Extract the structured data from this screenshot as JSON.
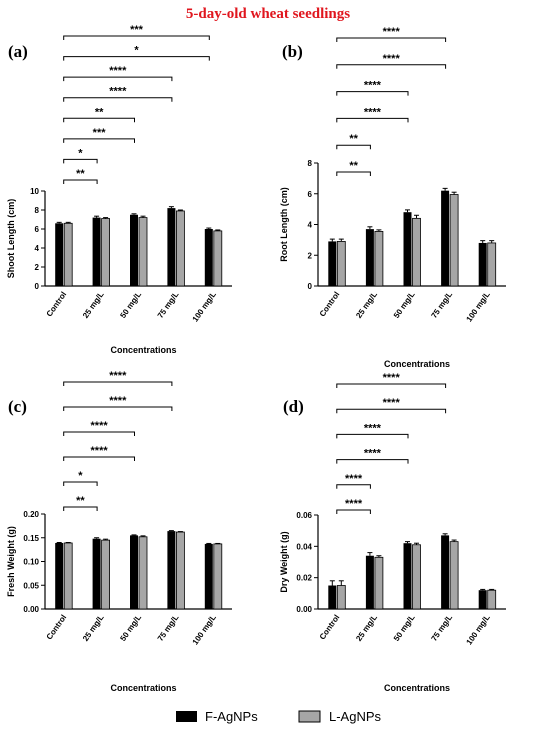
{
  "figure": {
    "title": "5-day-old wheat seedlings",
    "legend": [
      {
        "name": "F-AgNPs",
        "color": "#000000"
      },
      {
        "name": "L-AgNPs",
        "color": "#a6a6a6"
      }
    ]
  },
  "chart_data": [
    {
      "type": "bar",
      "panel_label": "(a)",
      "categories": [
        "Control",
        "25 mg/L",
        "50 mg/L",
        "75 mg/L",
        "100 mg/L"
      ],
      "series": [
        {
          "name": "F-AgNPs",
          "values": [
            6.6,
            7.2,
            7.5,
            8.2,
            6.0
          ],
          "errors": [
            0.1,
            0.15,
            0.1,
            0.15,
            0.1
          ]
        },
        {
          "name": "L-AgNPs",
          "values": [
            6.6,
            7.1,
            7.2,
            7.9,
            5.8
          ],
          "errors": [
            0.1,
            0.1,
            0.15,
            0.1,
            0.1
          ]
        }
      ],
      "xlabel": "Concentrations",
      "ylabel": "Shoot Length (cm)",
      "ylim": [
        0,
        10
      ],
      "yticks": [
        0,
        2,
        4,
        6,
        8,
        10
      ],
      "significance": [
        {
          "label": "**",
          "to": 1
        },
        {
          "label": "*",
          "to": 1
        },
        {
          "label": "***",
          "to": 2
        },
        {
          "label": "**",
          "to": 2
        },
        {
          "label": "****",
          "to": 3
        },
        {
          "label": "****",
          "to": 3
        },
        {
          "label": "*",
          "to": 4
        },
        {
          "label": "***",
          "to": 4
        }
      ]
    },
    {
      "type": "bar",
      "panel_label": "(b)",
      "categories": [
        "Control",
        "25 mg/L",
        "50 mg/L",
        "75 mg/L",
        "100 mg/L"
      ],
      "series": [
        {
          "name": "F-AgNPs",
          "values": [
            2.9,
            3.7,
            4.8,
            6.2,
            2.8
          ],
          "errors": [
            0.15,
            0.15,
            0.15,
            0.15,
            0.15
          ]
        },
        {
          "name": "L-AgNPs",
          "values": [
            2.9,
            3.55,
            4.4,
            5.95,
            2.8
          ],
          "errors": [
            0.15,
            0.1,
            0.2,
            0.15,
            0.15
          ]
        }
      ],
      "xlabel": "Concentrations",
      "ylabel": "Root Length (cm)",
      "ylim": [
        0,
        8
      ],
      "yticks": [
        0,
        2,
        4,
        6,
        8
      ],
      "significance": [
        {
          "label": "**",
          "to": 1
        },
        {
          "label": "**",
          "to": 1
        },
        {
          "label": "****",
          "to": 2
        },
        {
          "label": "****",
          "to": 2
        },
        {
          "label": "****",
          "to": 3
        },
        {
          "label": "****",
          "to": 3
        }
      ]
    },
    {
      "type": "bar",
      "panel_label": "(c)",
      "categories": [
        "Control",
        "25 mg/L",
        "50 mg/L",
        "75 mg/L",
        "100 mg/L"
      ],
      "series": [
        {
          "name": "F-AgNPs",
          "values": [
            0.139,
            0.148,
            0.155,
            0.164,
            0.137
          ],
          "errors": [
            0.001,
            0.002,
            0.001,
            0.001,
            0.001
          ]
        },
        {
          "name": "L-AgNPs",
          "values": [
            0.139,
            0.145,
            0.152,
            0.162,
            0.137
          ],
          "errors": [
            0.001,
            0.002,
            0.002,
            0.001,
            0.001
          ]
        }
      ],
      "xlabel": "Concentrations",
      "ylabel": "Fresh Weight (g)",
      "ylim": [
        0,
        0.2
      ],
      "yticks": [
        0,
        0.05,
        0.1,
        0.15,
        0.2
      ],
      "ytick_labels": [
        "0.00",
        "0.05",
        "0.10",
        "0.15",
        "0.20"
      ],
      "significance": [
        {
          "label": "**",
          "to": 1
        },
        {
          "label": "*",
          "to": 1
        },
        {
          "label": "****",
          "to": 2
        },
        {
          "label": "****",
          "to": 2
        },
        {
          "label": "****",
          "to": 3
        },
        {
          "label": "****",
          "to": 3
        }
      ]
    },
    {
      "type": "bar",
      "panel_label": "(d)",
      "categories": [
        "Control",
        "25 mg/L",
        "50 mg/L",
        "75 mg/L",
        "100 mg/L"
      ],
      "series": [
        {
          "name": "F-AgNPs",
          "values": [
            0.015,
            0.034,
            0.042,
            0.047,
            0.012
          ],
          "errors": [
            0.003,
            0.002,
            0.001,
            0.001,
            0.0005
          ]
        },
        {
          "name": "L-AgNPs",
          "values": [
            0.015,
            0.033,
            0.041,
            0.043,
            0.012
          ],
          "errors": [
            0.003,
            0.001,
            0.001,
            0.001,
            0.0005
          ]
        }
      ],
      "xlabel": "Concentrations",
      "ylabel": "Dry Weight (g)",
      "ylim": [
        0,
        0.06
      ],
      "yticks": [
        0,
        0.02,
        0.04,
        0.06
      ],
      "ytick_labels": [
        "0.00",
        "0.02",
        "0.04",
        "0.06"
      ],
      "significance": [
        {
          "label": "****",
          "to": 1
        },
        {
          "label": "****",
          "to": 1
        },
        {
          "label": "****",
          "to": 2
        },
        {
          "label": "****",
          "to": 2
        },
        {
          "label": "****",
          "to": 3
        },
        {
          "label": "****",
          "to": 3
        }
      ]
    }
  ]
}
